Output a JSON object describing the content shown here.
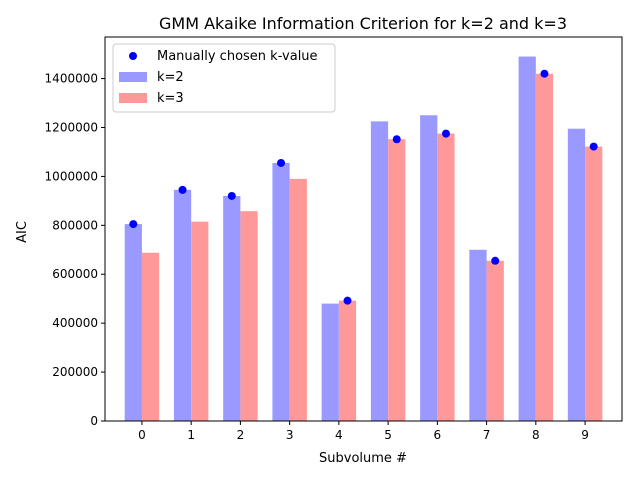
{
  "chart_data": {
    "type": "bar",
    "title": "GMM Akaike Information Criterion for k=2 and k=3",
    "xlabel": "Subvolume #",
    "ylabel": "AIC",
    "categories": [
      "0",
      "1",
      "2",
      "3",
      "4",
      "5",
      "6",
      "7",
      "8",
      "9"
    ],
    "ylim": [
      0,
      1570000
    ],
    "yticks": [
      0,
      200000,
      400000,
      600000,
      800000,
      1000000,
      1200000,
      1400000
    ],
    "ytick_labels": [
      "0",
      "200000",
      "400000",
      "600000",
      "800000",
      "1000000",
      "1200000",
      "1400000"
    ],
    "series": [
      {
        "name": "k=2",
        "type": "bar",
        "color": "#9999ff",
        "values": [
          805000,
          945000,
          920000,
          1055000,
          480000,
          1225000,
          1250000,
          700000,
          1490000,
          1195000
        ]
      },
      {
        "name": "k=3",
        "type": "bar",
        "color": "#ff9999",
        "values": [
          688000,
          815000,
          858000,
          990000,
          492000,
          1152000,
          1175000,
          655000,
          1420000,
          1122000
        ]
      },
      {
        "name": "Manually chosen k-value",
        "type": "scatter",
        "color": "#0000ff",
        "x_offsets": [
          "k=2",
          "k=2",
          "k=2",
          "k=2",
          "k=3",
          "k=3",
          "k=3",
          "k=3",
          "k=3",
          "k=3"
        ],
        "values": [
          805000,
          945000,
          920000,
          1055000,
          492000,
          1152000,
          1175000,
          655000,
          1420000,
          1122000
        ]
      }
    ],
    "legend": {
      "placement": "top-left",
      "entries": [
        "Manually chosen k-value",
        "k=2",
        "k=3"
      ]
    },
    "grid": false
  }
}
